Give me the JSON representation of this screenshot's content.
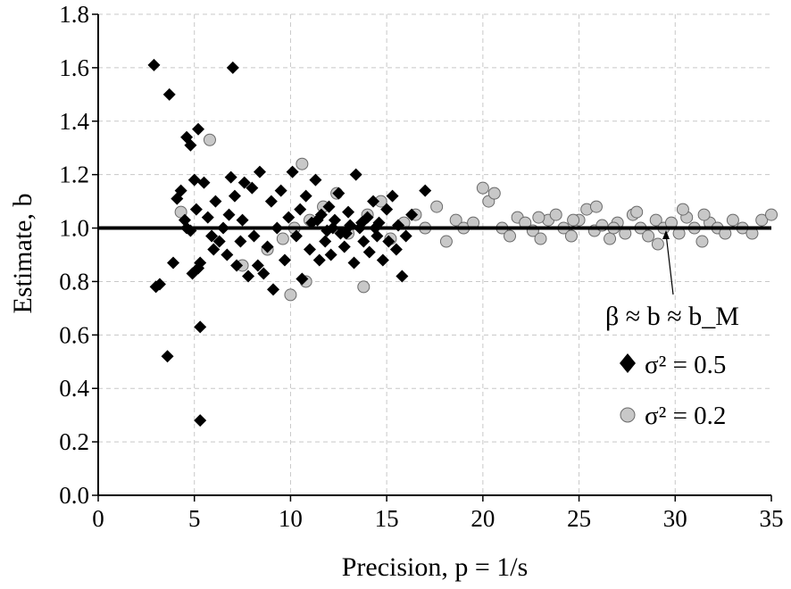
{
  "chart_data": {
    "type": "scatter",
    "xlabel": "Precision, p = 1/s",
    "ylabel": "Estimate, b",
    "xlim": [
      0,
      35
    ],
    "ylim": [
      0,
      1.8
    ],
    "x_ticks": [
      "0",
      "5",
      "10",
      "15",
      "20",
      "25",
      "30",
      "35"
    ],
    "y_ticks": [
      "0.0",
      "0.2",
      "0.4",
      "0.6",
      "0.8",
      "1.0",
      "1.2",
      "1.4",
      "1.6",
      "1.8"
    ],
    "grid": true,
    "reference_line": {
      "y": 1.0
    },
    "annotation": "β ≈ b ≈ b_M",
    "annotation_point": {
      "x": 29.3,
      "y": 1.0
    },
    "legend_position": "lower-right",
    "series": [
      {
        "name": "σ² = 0.5",
        "marker": "diamond",
        "color": "#000000",
        "points": [
          [
            2.9,
            1.61
          ],
          [
            7.0,
            1.6
          ],
          [
            3.7,
            1.5
          ],
          [
            5.2,
            1.37
          ],
          [
            4.6,
            1.34
          ],
          [
            4.8,
            1.31
          ],
          [
            3.0,
            0.78
          ],
          [
            3.2,
            0.79
          ],
          [
            3.6,
            0.52
          ],
          [
            5.3,
            0.63
          ],
          [
            5.3,
            0.28
          ],
          [
            3.9,
            0.87
          ],
          [
            4.1,
            1.11
          ],
          [
            4.3,
            1.14
          ],
          [
            4.5,
            1.03
          ],
          [
            4.6,
            1.0
          ],
          [
            4.8,
            0.99
          ],
          [
            5.0,
            1.18
          ],
          [
            5.1,
            1.07
          ],
          [
            4.9,
            0.83
          ],
          [
            5.2,
            0.85
          ],
          [
            5.3,
            0.87
          ],
          [
            5.5,
            1.17
          ],
          [
            5.7,
            1.04
          ],
          [
            5.9,
            0.97
          ],
          [
            6.1,
            1.1
          ],
          [
            6.0,
            0.92
          ],
          [
            6.3,
            0.95
          ],
          [
            6.5,
            1.0
          ],
          [
            6.7,
            0.9
          ],
          [
            6.8,
            1.05
          ],
          [
            6.9,
            1.19
          ],
          [
            7.1,
            1.12
          ],
          [
            7.2,
            0.86
          ],
          [
            7.4,
            0.95
          ],
          [
            7.5,
            1.03
          ],
          [
            7.6,
            1.17
          ],
          [
            7.8,
            0.82
          ],
          [
            8.0,
            1.15
          ],
          [
            8.1,
            0.97
          ],
          [
            8.3,
            0.86
          ],
          [
            8.4,
            1.21
          ],
          [
            8.6,
            0.83
          ],
          [
            8.8,
            0.93
          ],
          [
            9.0,
            1.1
          ],
          [
            9.1,
            0.77
          ],
          [
            9.3,
            1.0
          ],
          [
            9.5,
            1.14
          ],
          [
            9.7,
            0.88
          ],
          [
            9.9,
            1.04
          ],
          [
            10.1,
            1.21
          ],
          [
            10.3,
            0.97
          ],
          [
            10.5,
            1.07
          ],
          [
            10.6,
            0.81
          ],
          [
            10.8,
            1.12
          ],
          [
            11.0,
            0.92
          ],
          [
            11.1,
            1.02
          ],
          [
            11.3,
            1.18
          ],
          [
            11.5,
            0.88
          ],
          [
            11.6,
            1.05
          ],
          [
            11.8,
            0.95
          ],
          [
            12.0,
            1.08
          ],
          [
            12.1,
            0.9
          ],
          [
            12.3,
            1.03
          ],
          [
            12.5,
            1.13
          ],
          [
            12.6,
            0.98
          ],
          [
            12.8,
            0.93
          ],
          [
            13.0,
            1.06
          ],
          [
            13.1,
            1.01
          ],
          [
            13.3,
            0.87
          ],
          [
            13.4,
            1.2
          ],
          [
            13.6,
            1.0
          ],
          [
            13.8,
            0.95
          ],
          [
            14.0,
            1.04
          ],
          [
            14.1,
            0.91
          ],
          [
            14.3,
            1.1
          ],
          [
            14.5,
            0.97
          ],
          [
            14.6,
            1.02
          ],
          [
            14.8,
            0.88
          ],
          [
            15.0,
            1.07
          ],
          [
            15.1,
            0.95
          ],
          [
            15.3,
            1.12
          ],
          [
            15.5,
            0.92
          ],
          [
            15.6,
            1.01
          ],
          [
            15.8,
            0.82
          ],
          [
            16.0,
            0.97
          ],
          [
            16.3,
            1.05
          ],
          [
            17.0,
            1.14
          ],
          [
            11.4,
            1.03
          ],
          [
            12.2,
            1.0
          ],
          [
            12.9,
            0.98
          ],
          [
            13.7,
            1.02
          ],
          [
            14.4,
            1.0
          ],
          [
            11.9,
            0.99
          ]
        ]
      },
      {
        "name": "σ² = 0.2",
        "marker": "circle",
        "color": "#c8c8c8",
        "points": [
          [
            5.8,
            1.33
          ],
          [
            4.3,
            1.06
          ],
          [
            10.6,
            1.24
          ],
          [
            10.0,
            0.75
          ],
          [
            10.8,
            0.8
          ],
          [
            13.8,
            0.78
          ],
          [
            7.5,
            0.86
          ],
          [
            8.8,
            0.92
          ],
          [
            9.6,
            0.96
          ],
          [
            10.2,
            1.0
          ],
          [
            11.0,
            1.03
          ],
          [
            11.7,
            1.08
          ],
          [
            12.4,
            1.13
          ],
          [
            13.0,
            0.98
          ],
          [
            14.0,
            1.05
          ],
          [
            14.7,
            1.1
          ],
          [
            15.2,
            0.96
          ],
          [
            15.9,
            1.02
          ],
          [
            16.5,
            1.05
          ],
          [
            17.0,
            1.0
          ],
          [
            17.6,
            1.08
          ],
          [
            18.1,
            0.95
          ],
          [
            18.6,
            1.03
          ],
          [
            19.0,
            1.0
          ],
          [
            19.5,
            1.02
          ],
          [
            20.0,
            1.15
          ],
          [
            20.3,
            1.1
          ],
          [
            20.6,
            1.13
          ],
          [
            21.0,
            1.0
          ],
          [
            21.4,
            0.97
          ],
          [
            21.8,
            1.04
          ],
          [
            22.2,
            1.02
          ],
          [
            22.6,
            0.99
          ],
          [
            23.0,
            0.96
          ],
          [
            23.4,
            1.03
          ],
          [
            23.8,
            1.05
          ],
          [
            24.2,
            1.0
          ],
          [
            24.6,
            0.97
          ],
          [
            25.0,
            1.03
          ],
          [
            25.4,
            1.07
          ],
          [
            25.8,
            0.99
          ],
          [
            26.2,
            1.01
          ],
          [
            26.6,
            0.96
          ],
          [
            27.0,
            1.02
          ],
          [
            27.4,
            0.98
          ],
          [
            27.8,
            1.05
          ],
          [
            28.2,
            1.0
          ],
          [
            28.6,
            0.97
          ],
          [
            29.0,
            1.03
          ],
          [
            29.4,
            1.0
          ],
          [
            29.8,
            1.02
          ],
          [
            30.2,
            0.98
          ],
          [
            30.6,
            1.04
          ],
          [
            31.0,
            1.0
          ],
          [
            31.4,
            0.95
          ],
          [
            31.8,
            1.02
          ],
          [
            32.2,
            1.0
          ],
          [
            32.6,
            0.98
          ],
          [
            33.0,
            1.03
          ],
          [
            33.5,
            1.0
          ],
          [
            34.0,
            0.98
          ],
          [
            34.5,
            1.03
          ],
          [
            35.0,
            1.05
          ],
          [
            25.9,
            1.08
          ],
          [
            28.0,
            1.06
          ],
          [
            30.4,
            1.07
          ],
          [
            22.9,
            1.04
          ],
          [
            24.7,
            1.03
          ],
          [
            26.8,
            1.0
          ],
          [
            29.1,
            0.94
          ],
          [
            31.5,
            1.05
          ]
        ]
      }
    ]
  }
}
